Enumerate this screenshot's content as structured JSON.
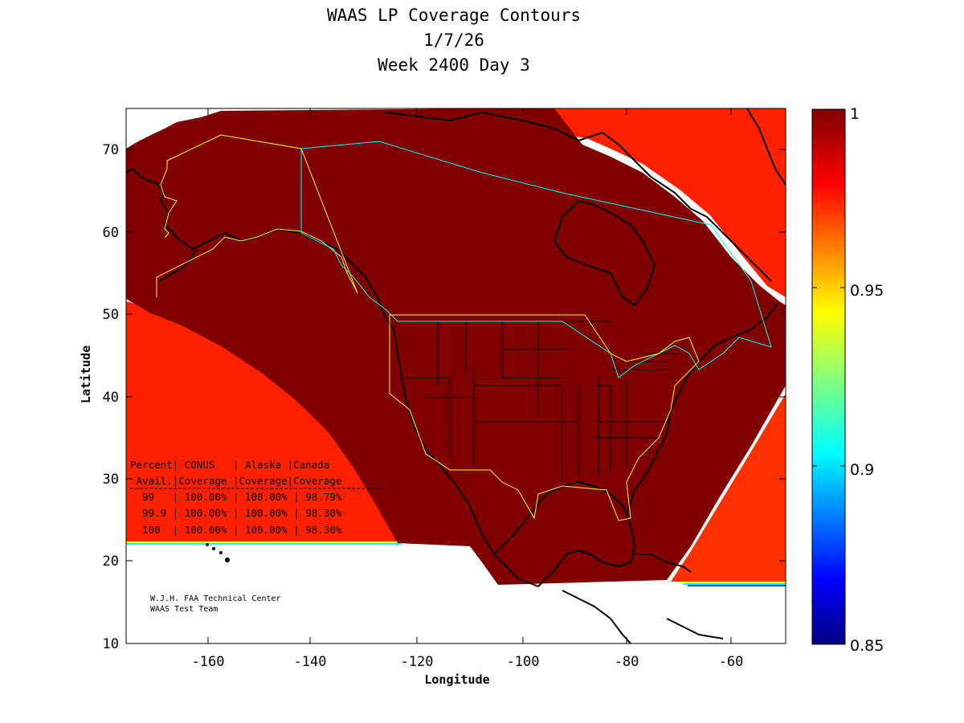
{
  "title": {
    "line1": "WAAS LP Coverage Contours",
    "line2": "1/7/26",
    "line3": "Week 2400 Day 3"
  },
  "axes": {
    "xlabel": "Longitude",
    "ylabel": "Latitude",
    "xlim": [
      -175,
      -50
    ],
    "ylim": [
      10,
      75
    ],
    "xticks": [
      "-160",
      "-140",
      "-120",
      "-100",
      "-80",
      "-60"
    ],
    "yticks": [
      "10",
      "20",
      "30",
      "40",
      "50",
      "60",
      "70"
    ]
  },
  "colorbar": {
    "range": [
      0.85,
      1
    ],
    "ticks": [
      "0.85",
      "0.9",
      "0.95",
      "1"
    ],
    "colormap": "jet"
  },
  "coverage_table": {
    "header1": "Percent| CONUS   | Alaska |Canada",
    "header2": " Avail.|Coverage |Coverage|Coverage",
    "rows": [
      {
        "avail": "99",
        "conus": "100.00%",
        "alaska": "100.00%",
        "canada": "98.79%",
        "text": "  99   | 100.00% | 100.00% | 98.79%"
      },
      {
        "avail": "99.9",
        "conus": "100.00%",
        "alaska": "100.00%",
        "canada": "98.30%",
        "text": "  99.9 | 100.00% | 100.00% | 98.30%"
      },
      {
        "avail": "100",
        "conus": "100.00%",
        "alaska": "100.00%",
        "canada": "98.30%",
        "text": "  100  | 100.00% | 100.00% | 98.30%"
      }
    ]
  },
  "credit": {
    "line1": "W.J.H. FAA Technical Center",
    "line2": "WAAS Test Team"
  },
  "colors": {
    "coverage_full": "#800000",
    "conus_boundary": "#ffff00",
    "canada_boundary": "#00ffff",
    "alaska_boundary": "#ffff00",
    "coastline": "#000000"
  },
  "chart_data": {
    "type": "heatmap",
    "title": "WAAS LP Coverage Contours",
    "xlabel": "Longitude",
    "ylabel": "Latitude",
    "xlim": [
      -175,
      -50
    ],
    "ylim": [
      10,
      75
    ],
    "zlim": [
      0.85,
      1
    ],
    "value_inside_region": 1.0,
    "edge_gradient": "values fall from 1 to 0.85 at the southwest, northeast and southeast edges of the coverage region"
  }
}
